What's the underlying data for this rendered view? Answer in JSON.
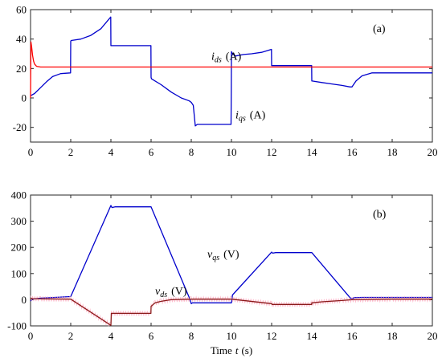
{
  "chart_data": [
    {
      "type": "line",
      "panel_label": "(a)",
      "xlabel": "",
      "ylabel": "",
      "xlim": [
        0,
        20
      ],
      "ylim": [
        -30,
        60
      ],
      "xticks": [
        0,
        2,
        4,
        6,
        8,
        10,
        12,
        14,
        16,
        18,
        20
      ],
      "yticks": [
        -20,
        0,
        20,
        40,
        60
      ],
      "grid": false,
      "legend": "none",
      "series": [
        {
          "color": "#0000cc",
          "x": [
            0,
            0.2,
            0.5,
            0.8,
            1.1,
            1.5,
            1.99,
            2.0,
            2.02,
            2.5,
            3.0,
            3.5,
            3.99,
            4.0,
            4.02,
            5.99,
            6.0,
            6.02,
            6.5,
            7.0,
            7.5,
            7.9,
            8.0,
            8.1,
            8.2,
            8.3,
            9.98,
            9.99,
            10.0,
            10.05,
            10.2,
            10.6,
            11.0,
            11.5,
            11.99,
            12.0,
            12.02,
            13.99,
            14.0,
            14.02,
            14.5,
            15.0,
            15.5,
            15.9,
            16.0,
            16.2,
            16.5,
            17.0,
            18.0,
            19.0,
            20.0
          ],
          "y": [
            1.5,
            3,
            7,
            11,
            14.5,
            16.5,
            17,
            38.5,
            39,
            40,
            42.5,
            47,
            55,
            35.5,
            35.5,
            35.5,
            14,
            13,
            9,
            4,
            0,
            -2,
            -3,
            -5,
            -19,
            -18,
            -18,
            6,
            31.5,
            30,
            28.5,
            29.5,
            30,
            31,
            33,
            22,
            22,
            22,
            11.5,
            11.5,
            10.5,
            9.5,
            8.5,
            7.5,
            7.5,
            11.5,
            15,
            17,
            17,
            17,
            17
          ]
        },
        {
          "color": "#ff0000",
          "x": [
            0,
            0.02,
            0.05,
            0.1,
            0.15,
            0.2,
            0.3,
            0.5,
            20
          ],
          "y": [
            0,
            38,
            35,
            29,
            25,
            23,
            21.5,
            21,
            21
          ]
        }
      ],
      "annotations": [
        {
          "var": "i",
          "sub": "ds",
          "unit": "(A)",
          "x": 9.0,
          "y": 26
        },
        {
          "var": "i",
          "sub": "qs",
          "unit": "(A)",
          "x": 10.2,
          "y": -14
        }
      ]
    },
    {
      "type": "line",
      "panel_label": "(b)",
      "xlabel_prefix": "Time",
      "xlabel_var": "t",
      "xlabel_unit": "(s)",
      "ylabel": "",
      "xlim": [
        0,
        20
      ],
      "ylim": [
        -100,
        400
      ],
      "xticks": [
        0,
        2,
        4,
        6,
        8,
        10,
        12,
        14,
        16,
        18,
        20
      ],
      "yticks": [
        -100,
        0,
        100,
        200,
        300,
        400
      ],
      "grid": false,
      "legend": "none",
      "series": [
        {
          "color": "#0000cc",
          "x": [
            0,
            0.1,
            0.5,
            1.0,
            1.5,
            2.0,
            4.0,
            4.05,
            4.2,
            6.0,
            7.9,
            8.0,
            8.05,
            10.0,
            10.05,
            12.0,
            12.05,
            12.2,
            14.0,
            15.9,
            16.0,
            16.1,
            16.5,
            18,
            20
          ],
          "y": [
            -5,
            2,
            6,
            8,
            10,
            12,
            360,
            352,
            355,
            355,
            8,
            -15,
            -12,
            -12,
            18,
            182,
            178,
            180,
            180,
            8,
            3,
            8,
            9,
            9,
            9
          ],
          "noise": false
        },
        {
          "color": "#8b1a1a",
          "band_color": "#ff9fb8",
          "x": [
            0,
            0.1,
            0.5,
            2.0,
            4.0,
            4.02,
            5.99,
            6.0,
            6.2,
            6.5,
            7.0,
            8.0,
            10.0,
            12.0,
            12.02,
            13.99,
            14.0,
            14.5,
            15.5,
            16.0,
            18,
            20
          ],
          "y": [
            6,
            4,
            3,
            2,
            -98,
            -52,
            -52,
            -25,
            -12,
            -6,
            0,
            2,
            2,
            -15,
            -18,
            -18,
            -12,
            -8,
            -3,
            0,
            2,
            2
          ],
          "noise": true
        }
      ],
      "annotations": [
        {
          "var": "v",
          "sub": "qs",
          "unit": "(V)",
          "x": 8.8,
          "y": 160
        },
        {
          "var": "v",
          "sub": "ds",
          "unit": "(V)",
          "x": 6.2,
          "y": 20
        }
      ]
    }
  ]
}
